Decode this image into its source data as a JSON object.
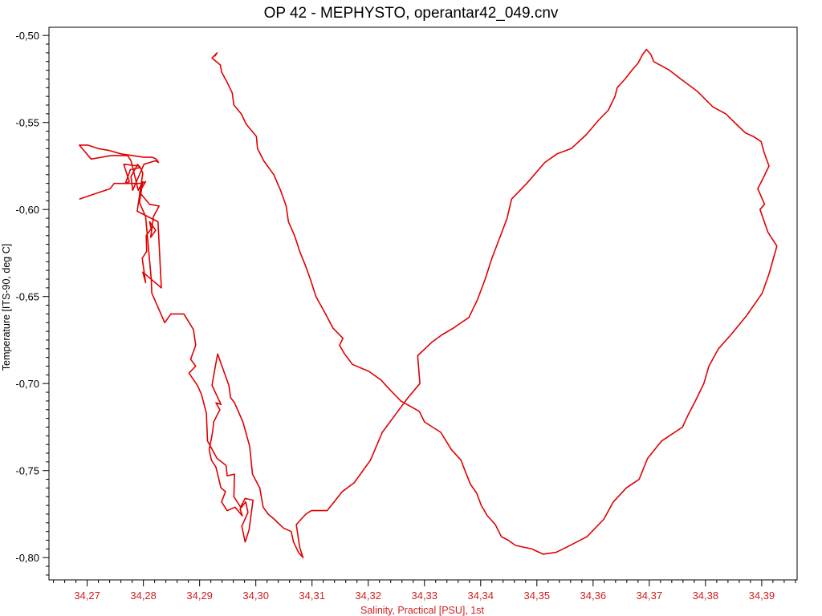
{
  "chart_data": {
    "type": "line",
    "title": "OP 42 - MEPHYSTO, operantar42_049.cnv",
    "xlabel": "Salinity, Practical [PSU], 1st",
    "ylabel": "Temperature [ITS-90, deg C]",
    "xlim": [
      34.2632,
      34.3963
    ],
    "ylim": [
      -0.8128,
      -0.4953
    ],
    "x_ticks": [
      34.27,
      34.28,
      34.29,
      34.3,
      34.31,
      34.32,
      34.33,
      34.34,
      34.35,
      34.36,
      34.37,
      34.38,
      34.39
    ],
    "x_tick_labels": [
      "34,27",
      "34,28",
      "34,29",
      "34,30",
      "34,31",
      "34,32",
      "34,33",
      "34,34",
      "34,35",
      "34,36",
      "34,37",
      "34,38",
      "34,39"
    ],
    "y_ticks": [
      -0.5,
      -0.55,
      -0.6,
      -0.65,
      -0.7,
      -0.75,
      -0.8
    ],
    "y_tick_labels": [
      "-0,50",
      "-0,55",
      "-0,60",
      "-0,65",
      "-0,70",
      "-0,75",
      "-0,80"
    ],
    "grid": false,
    "colors": {
      "line": "#e00000",
      "x_axis_text": "#d02020",
      "y_axis_text": "#000000",
      "frame": "#000000"
    },
    "series": [
      {
        "x": [
          34.2686,
          34.2741,
          34.2748,
          34.2797,
          34.2804,
          34.2793,
          34.2811,
          34.2828,
          34.2818,
          34.2813,
          34.2822,
          34.2811,
          34.2814,
          34.2805,
          34.2806,
          34.2798,
          34.2804,
          34.2799,
          34.2832,
          34.2826,
          34.2789,
          34.2799,
          34.2793,
          34.2765,
          34.2775,
          34.2768,
          34.2777,
          34.2793,
          34.279,
          34.2778,
          34.2781,
          34.2801,
          34.2822,
          34.2827,
          34.2823,
          34.2816,
          34.2801,
          34.276,
          34.2738,
          34.272,
          34.2701,
          34.2686,
          34.2707,
          34.2743,
          34.2772,
          34.2778,
          34.2791,
          34.2799,
          34.2793,
          34.2804,
          34.2808,
          34.2814,
          34.2815,
          34.2838,
          34.2849,
          34.2872,
          34.2889,
          34.2893,
          34.2884,
          34.2893,
          34.2881,
          34.2896,
          34.2903,
          34.2912,
          34.2914,
          34.2931,
          34.2947,
          34.2949,
          34.2962,
          34.2961,
          34.2973,
          34.2981,
          34.2995,
          34.2988,
          34.2981,
          34.2975,
          34.2986,
          34.2982,
          34.2972,
          34.2976,
          34.2963,
          34.2949,
          34.2939,
          34.2946,
          34.2938,
          34.2929,
          34.2921,
          34.2917,
          34.2923,
          34.2925,
          34.2936,
          34.2929,
          34.2938,
          34.2922,
          34.2928,
          34.2932,
          34.2952,
          34.2955,
          34.2962,
          34.2977,
          34.2989,
          34.2994,
          34.3007,
          34.3013,
          34.3022,
          34.3033,
          34.3049,
          34.3063,
          34.3067,
          34.3076,
          34.3084,
          34.3078,
          34.3072,
          34.3089,
          34.3099,
          34.3127,
          34.3154,
          34.3175,
          34.3204,
          34.3225,
          34.3248,
          34.3271,
          34.3292,
          34.3288,
          34.3314,
          34.3331,
          34.3352,
          34.3361,
          34.3379,
          34.3394,
          34.3408,
          34.342,
          34.3433,
          34.3447,
          34.3455,
          34.3482,
          34.3514,
          34.3536,
          34.3561,
          34.3588,
          34.3609,
          34.3627,
          34.3639,
          34.3643,
          34.3657,
          34.3669,
          34.368,
          34.3688,
          34.3695,
          34.3703,
          34.3708,
          34.3736,
          34.3756,
          34.3785,
          34.3813,
          34.3836,
          34.3858,
          34.3871,
          34.3885,
          34.3899,
          34.3904,
          34.3913,
          34.3901,
          34.3893,
          34.3905,
          34.3897,
          34.3911,
          34.3927,
          34.3913,
          34.3901,
          34.3873,
          34.3845,
          34.3823,
          34.3806,
          34.3797,
          34.3782,
          34.3769,
          34.3759,
          34.3722,
          34.3697,
          34.3682,
          34.3659,
          34.3636,
          34.3619,
          34.3589,
          34.3553,
          34.3534,
          34.3511,
          34.3491,
          34.3462,
          34.3449,
          34.3437,
          34.3426,
          34.3412,
          34.3401,
          34.3393,
          34.3382,
          34.3372,
          34.3365,
          34.3348,
          34.3329,
          34.33,
          34.3291,
          34.3258,
          34.3237,
          34.3223,
          34.3201,
          34.3172,
          34.3158,
          34.3149,
          34.3155,
          34.3137,
          34.3124,
          34.3107,
          34.3097,
          34.3088,
          34.3078,
          34.3069,
          34.3058,
          34.3054,
          34.3044,
          34.3032,
          34.3014,
          34.3003,
          34.3001,
          34.2983,
          34.2974,
          34.2961,
          34.2958,
          34.2949,
          34.2939,
          34.2937,
          34.2922,
          34.2931,
          34.2927
        ],
        "y": [
          -0.594,
          -0.588,
          -0.585,
          -0.585,
          -0.584,
          -0.59,
          -0.597,
          -0.598,
          -0.604,
          -0.616,
          -0.612,
          -0.607,
          -0.611,
          -0.615,
          -0.624,
          -0.628,
          -0.642,
          -0.636,
          -0.645,
          -0.607,
          -0.601,
          -0.579,
          -0.575,
          -0.574,
          -0.584,
          -0.585,
          -0.577,
          -0.576,
          -0.574,
          -0.581,
          -0.589,
          -0.574,
          -0.572,
          -0.573,
          -0.571,
          -0.57,
          -0.57,
          -0.568,
          -0.566,
          -0.565,
          -0.563,
          -0.563,
          -0.571,
          -0.569,
          -0.569,
          -0.572,
          -0.589,
          -0.584,
          -0.596,
          -0.604,
          -0.618,
          -0.64,
          -0.648,
          -0.665,
          -0.66,
          -0.66,
          -0.669,
          -0.678,
          -0.686,
          -0.69,
          -0.694,
          -0.701,
          -0.706,
          -0.717,
          -0.733,
          -0.743,
          -0.747,
          -0.753,
          -0.752,
          -0.765,
          -0.771,
          -0.766,
          -0.767,
          -0.784,
          -0.791,
          -0.782,
          -0.774,
          -0.768,
          -0.772,
          -0.776,
          -0.771,
          -0.773,
          -0.768,
          -0.762,
          -0.76,
          -0.748,
          -0.744,
          -0.738,
          -0.728,
          -0.722,
          -0.715,
          -0.711,
          -0.712,
          -0.701,
          -0.69,
          -0.683,
          -0.701,
          -0.708,
          -0.711,
          -0.722,
          -0.736,
          -0.752,
          -0.76,
          -0.771,
          -0.775,
          -0.778,
          -0.783,
          -0.785,
          -0.791,
          -0.797,
          -0.8,
          -0.794,
          -0.781,
          -0.775,
          -0.773,
          -0.773,
          -0.762,
          -0.757,
          -0.744,
          -0.728,
          -0.718,
          -0.708,
          -0.7,
          -0.684,
          -0.676,
          -0.672,
          -0.668,
          -0.666,
          -0.662,
          -0.652,
          -0.64,
          -0.628,
          -0.617,
          -0.605,
          -0.594,
          -0.585,
          -0.573,
          -0.568,
          -0.565,
          -0.557,
          -0.549,
          -0.543,
          -0.535,
          -0.53,
          -0.525,
          -0.52,
          -0.516,
          -0.511,
          -0.508,
          -0.511,
          -0.515,
          -0.52,
          -0.525,
          -0.532,
          -0.541,
          -0.545,
          -0.552,
          -0.556,
          -0.558,
          -0.561,
          -0.567,
          -0.575,
          -0.583,
          -0.588,
          -0.597,
          -0.6,
          -0.613,
          -0.621,
          -0.637,
          -0.648,
          -0.661,
          -0.672,
          -0.68,
          -0.69,
          -0.7,
          -0.71,
          -0.718,
          -0.725,
          -0.733,
          -0.743,
          -0.755,
          -0.76,
          -0.768,
          -0.778,
          -0.788,
          -0.794,
          -0.797,
          -0.798,
          -0.795,
          -0.793,
          -0.79,
          -0.788,
          -0.781,
          -0.776,
          -0.77,
          -0.763,
          -0.758,
          -0.75,
          -0.744,
          -0.738,
          -0.728,
          -0.722,
          -0.716,
          -0.71,
          -0.703,
          -0.698,
          -0.693,
          -0.689,
          -0.683,
          -0.678,
          -0.674,
          -0.668,
          -0.66,
          -0.65,
          -0.64,
          -0.632,
          -0.624,
          -0.615,
          -0.607,
          -0.598,
          -0.589,
          -0.58,
          -0.572,
          -0.565,
          -0.558,
          -0.551,
          -0.545,
          -0.54,
          -0.533,
          -0.527,
          -0.521,
          -0.517,
          -0.513,
          -0.51,
          -0.512
        ]
      }
    ]
  }
}
